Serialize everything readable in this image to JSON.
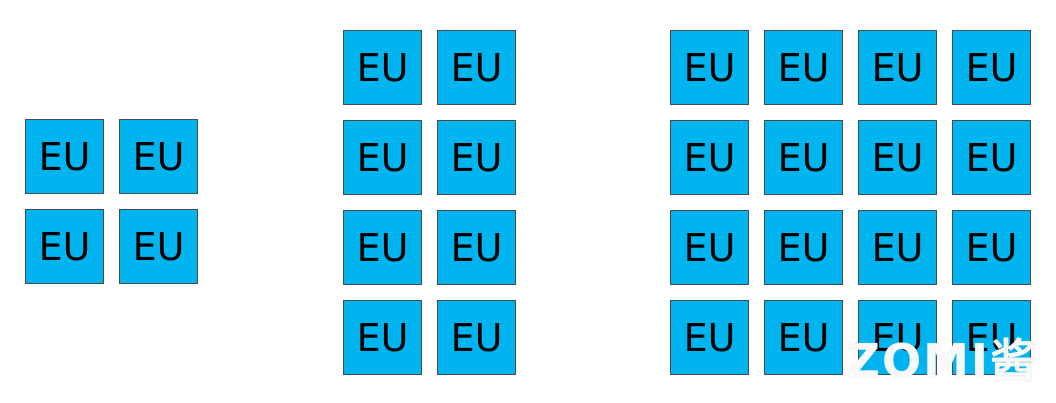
{
  "groups": [
    {
      "name": "group-2x2",
      "cells": [
        "EU",
        "EU",
        "EU",
        "EU"
      ]
    },
    {
      "name": "group-2x4",
      "cells": [
        "EU",
        "EU",
        "EU",
        "EU",
        "EU",
        "EU",
        "EU",
        "EU"
      ]
    },
    {
      "name": "group-4x4",
      "cells": [
        "EU",
        "EU",
        "EU",
        "EU",
        "EU",
        "EU",
        "EU",
        "EU",
        "EU",
        "EU",
        "EU",
        "EU",
        "EU",
        "EU",
        "EU",
        "EU"
      ]
    }
  ],
  "colors": {
    "cell_fill": "#00b4f0",
    "cell_border": "#4a4a4a",
    "text": "#000000"
  },
  "watermark": "ZOMI酱"
}
